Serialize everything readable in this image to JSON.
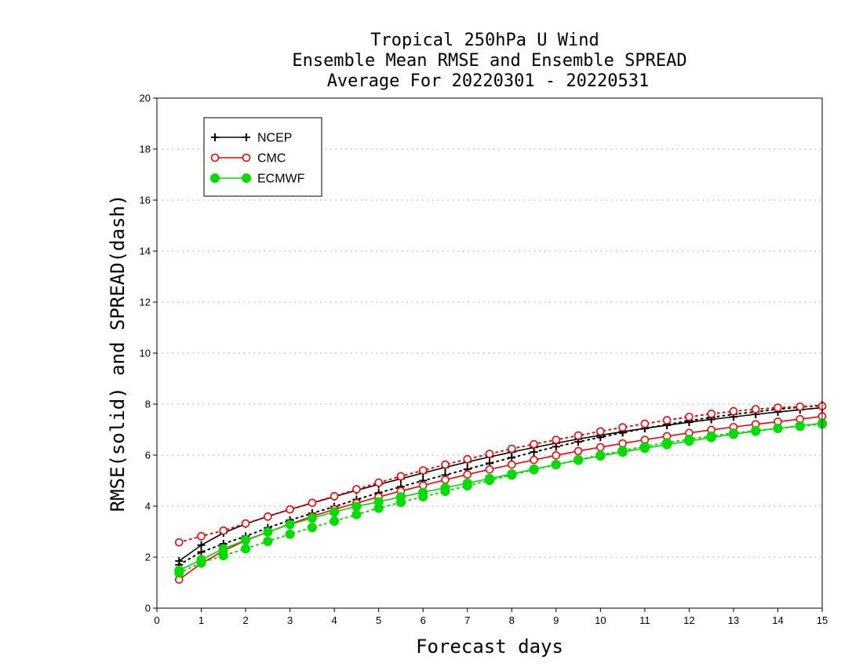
{
  "chart_data": {
    "type": "line",
    "title": [
      "Tropical 250hPa U Wind",
      "Ensemble Mean RMSE and Ensemble SPREAD",
      "Average For 20220301 - 20220531"
    ],
    "xlabel": "Forecast days",
    "ylabel": "RMSE(solid) and SPREAD(dash)",
    "xlim": [
      0,
      15
    ],
    "ylim": [
      0,
      20
    ],
    "xticks": [
      0,
      1,
      2,
      3,
      4,
      5,
      6,
      7,
      8,
      9,
      10,
      11,
      12,
      13,
      14,
      15
    ],
    "yticks": [
      0,
      2,
      4,
      6,
      8,
      10,
      12,
      14,
      16,
      18,
      20
    ],
    "grid": "horizontal dotted",
    "legend_position": "top-left",
    "x": [
      0.5,
      1,
      1.5,
      2,
      2.5,
      3,
      3.5,
      4,
      4.5,
      5,
      5.5,
      6,
      6.5,
      7,
      7.5,
      8,
      8.5,
      9,
      9.5,
      10,
      10.5,
      11,
      11.5,
      12,
      12.5,
      13,
      13.5,
      14,
      14.5,
      15
    ],
    "series": [
      {
        "name": "NCEP",
        "metric": "RMSE",
        "color": "#000000",
        "marker": "plus",
        "values": [
          1.85,
          2.47,
          2.95,
          3.3,
          3.6,
          3.87,
          4.12,
          4.37,
          4.62,
          4.85,
          5.07,
          5.3,
          5.52,
          5.73,
          5.93,
          6.12,
          6.3,
          6.47,
          6.63,
          6.78,
          6.92,
          7.05,
          7.17,
          7.29,
          7.4,
          7.5,
          7.6,
          7.69,
          7.78,
          7.86
        ]
      },
      {
        "name": "NCEP",
        "metric": "SPREAD",
        "color": "#000000",
        "marker": "plus",
        "values": [
          1.7,
          2.2,
          2.52,
          2.82,
          3.15,
          3.45,
          3.72,
          3.98,
          4.26,
          4.52,
          4.76,
          5.0,
          5.22,
          5.45,
          5.68,
          5.9,
          6.12,
          6.33,
          6.52,
          6.7,
          6.88,
          7.05,
          7.2,
          7.35,
          7.48,
          7.6,
          7.7,
          7.8,
          7.88,
          7.96
        ]
      },
      {
        "name": "CMC",
        "metric": "RMSE",
        "color": "#ff0000",
        "marker": "open-circle",
        "values": [
          1.12,
          1.75,
          2.25,
          2.65,
          2.98,
          3.3,
          3.6,
          3.87,
          4.12,
          4.36,
          4.59,
          4.81,
          5.03,
          5.24,
          5.44,
          5.63,
          5.81,
          5.99,
          6.16,
          6.31,
          6.46,
          6.6,
          6.74,
          6.87,
          6.99,
          7.1,
          7.21,
          7.31,
          7.41,
          7.52
        ]
      },
      {
        "name": "CMC",
        "metric": "SPREAD",
        "color": "#ff0000",
        "marker": "open-circle",
        "values": [
          2.58,
          2.82,
          3.04,
          3.32,
          3.59,
          3.87,
          4.13,
          4.39,
          4.66,
          4.92,
          5.17,
          5.4,
          5.63,
          5.84,
          6.05,
          6.25,
          6.43,
          6.6,
          6.77,
          6.93,
          7.09,
          7.23,
          7.37,
          7.5,
          7.62,
          7.72,
          7.8,
          7.86,
          7.9,
          7.92
        ]
      },
      {
        "name": "ECMWF",
        "metric": "RMSE",
        "color": "#00dd00",
        "marker": "filled-circle",
        "values": [
          1.48,
          1.9,
          2.33,
          2.67,
          2.99,
          3.28,
          3.53,
          3.77,
          3.99,
          4.17,
          4.36,
          4.54,
          4.72,
          4.9,
          5.08,
          5.26,
          5.45,
          5.63,
          5.8,
          5.97,
          6.12,
          6.27,
          6.41,
          6.55,
          6.69,
          6.82,
          6.94,
          7.05,
          7.15,
          7.25
        ]
      },
      {
        "name": "ECMWF",
        "metric": "SPREAD",
        "color": "#00dd00",
        "marker": "filled-circle",
        "values": [
          1.38,
          1.78,
          2.06,
          2.33,
          2.62,
          2.9,
          3.16,
          3.41,
          3.67,
          3.92,
          4.15,
          4.37,
          4.58,
          4.8,
          5.01,
          5.22,
          5.43,
          5.63,
          5.82,
          6.0,
          6.18,
          6.34,
          6.49,
          6.62,
          6.75,
          6.86,
          6.96,
          7.05,
          7.13,
          7.22
        ]
      }
    ]
  }
}
